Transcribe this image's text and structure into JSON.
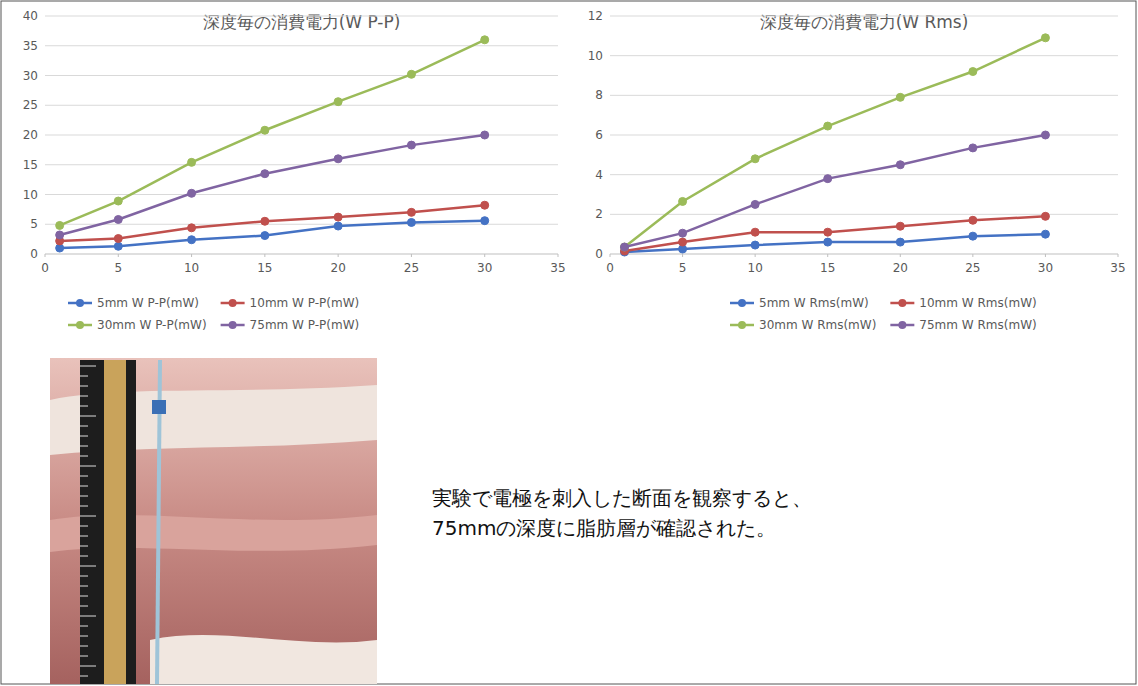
{
  "chart_data": [
    {
      "type": "line",
      "title": "深度毎の消費電力(W P-P)",
      "x": [
        1,
        5,
        10,
        15,
        20,
        25,
        30
      ],
      "xlim": [
        0,
        35
      ],
      "xticks": [
        0,
        5,
        10,
        15,
        20,
        25,
        30,
        35
      ],
      "ylim": [
        0,
        40
      ],
      "yticks": [
        0,
        5,
        10,
        15,
        20,
        25,
        30,
        35,
        40
      ],
      "grid": true,
      "legend": "bottom",
      "marker": "circle",
      "line_style": "solid",
      "series": [
        {
          "name": "5mm W P-P(mW)",
          "color": "#4472c4",
          "values": [
            1.0,
            1.3,
            2.4,
            3.1,
            4.7,
            5.3,
            5.6
          ]
        },
        {
          "name": "10mm W P-P(mW)",
          "color": "#c0504d",
          "values": [
            2.2,
            2.6,
            4.4,
            5.5,
            6.2,
            7.0,
            8.2
          ]
        },
        {
          "name": "30mm W P-P(mW)",
          "color": "#9bbb59",
          "values": [
            4.8,
            8.9,
            15.4,
            20.8,
            25.6,
            30.2,
            36.0
          ]
        },
        {
          "name": "75mm W P-P(mW)",
          "color": "#8064a2",
          "values": [
            3.2,
            5.8,
            10.2,
            13.5,
            16.0,
            18.3,
            20.0
          ]
        }
      ]
    },
    {
      "type": "line",
      "title": "深度毎の消費電力(W Rms)",
      "x": [
        1,
        5,
        10,
        15,
        20,
        25,
        30
      ],
      "xlim": [
        0,
        35
      ],
      "xticks": [
        0,
        5,
        10,
        15,
        20,
        25,
        30,
        35
      ],
      "ylim": [
        0,
        12
      ],
      "yticks": [
        0,
        2,
        4,
        6,
        8,
        10,
        12
      ],
      "grid": true,
      "legend": "bottom",
      "marker": "circle",
      "line_style": "solid",
      "series": [
        {
          "name": "5mm W Rms(mW)",
          "color": "#4472c4",
          "values": [
            0.1,
            0.25,
            0.45,
            0.6,
            0.6,
            0.9,
            1.0
          ]
        },
        {
          "name": "10mm W Rms(mW)",
          "color": "#c0504d",
          "values": [
            0.15,
            0.6,
            1.1,
            1.1,
            1.4,
            1.7,
            1.9
          ]
        },
        {
          "name": "30mm W Rms(mW)",
          "color": "#9bbb59",
          "values": [
            0.35,
            2.65,
            4.8,
            6.45,
            7.9,
            9.2,
            10.9
          ]
        },
        {
          "name": "75mm W Rms(mW)",
          "color": "#8064a2",
          "values": [
            0.35,
            1.05,
            2.5,
            3.8,
            4.5,
            5.35,
            6.0
          ]
        }
      ]
    }
  ],
  "caption": [
    "実験で電極を刺入した断面を観察すると、",
    "75mmの深度に脂肪層が確認された。"
  ]
}
